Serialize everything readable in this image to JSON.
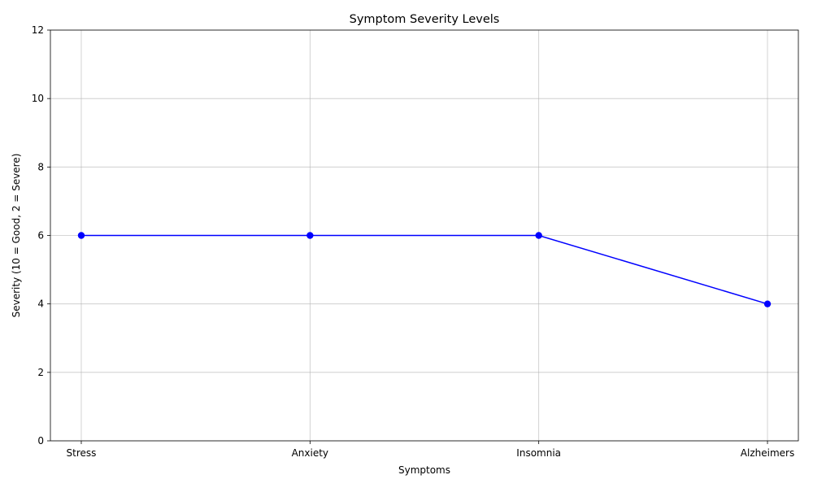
{
  "chart_data": {
    "type": "line",
    "title": "Symptom Severity Levels",
    "xlabel": "Symptoms",
    "ylabel": "Severity (10 = Good, 2 = Severe)",
    "categories": [
      "Stress",
      "Anxiety",
      "Insomnia",
      "Alzheimers"
    ],
    "series": [
      {
        "values": [
          6,
          6,
          6,
          4
        ],
        "color": "#0000ff",
        "marker": "circle"
      }
    ],
    "ylim": [
      0,
      12
    ],
    "yticks": [
      0,
      2,
      4,
      6,
      8,
      10,
      12
    ],
    "grid": true,
    "legend": false
  }
}
